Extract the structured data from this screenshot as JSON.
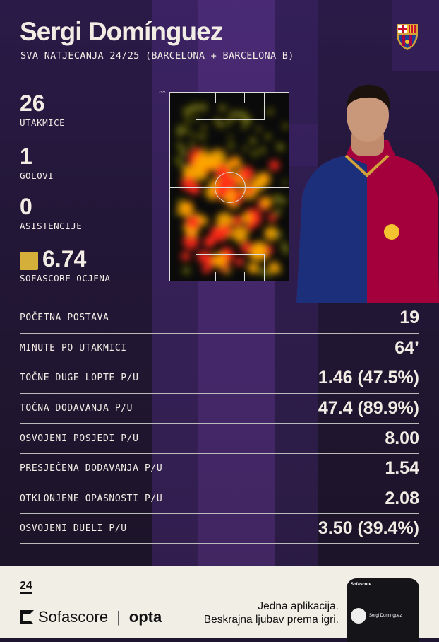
{
  "header": {
    "title": "Sergi Domínguez",
    "subtitle": "SVA NATJECANJA 24/25 (BARCELONA + BARCELONA B)",
    "club_crest": "fc-barcelona-crest-icon"
  },
  "summary": [
    {
      "value": "26",
      "label": "UTAKMICE"
    },
    {
      "value": "1",
      "label": "GOLOVI"
    },
    {
      "value": "0",
      "label": "ASISTENCIJE"
    },
    {
      "value": "6.74",
      "label": "SOFASCORE OCJENA",
      "color": "#d4b03a"
    }
  ],
  "heatmap": {
    "direction": "attack-up-arrows-icon"
  },
  "stats": [
    {
      "label": "POČETNA POSTAVA",
      "value": "19"
    },
    {
      "label": "MINUTE PO UTAKMICI",
      "value": "64’"
    },
    {
      "label": "TOČNE DUGE LOPTE P/U",
      "value": "1.46 (47.5%)"
    },
    {
      "label": "TOČNA DODAVANJA P/U",
      "value": "47.4 (89.9%)"
    },
    {
      "label": "OSVOJENI POSJEDI P/U",
      "value": "8.00"
    },
    {
      "label": "PRESJEČENA DODAVANJA P/U",
      "value": "1.54"
    },
    {
      "label": "OTKLONJENE OPASNOSTI P/U",
      "value": "2.08"
    },
    {
      "label": "OSVOJENI DUELI P/U",
      "value": "3.50 (39.4%)"
    }
  ],
  "footer": {
    "logo24": "24",
    "brand": "Sofascore",
    "partner": "opta",
    "tagline1": "Jedna aplikacija.",
    "tagline2": "Beskrajna ljubav prema igri.",
    "phone_app": "Sofascore",
    "phone_player": "Sergi Domínguez"
  }
}
